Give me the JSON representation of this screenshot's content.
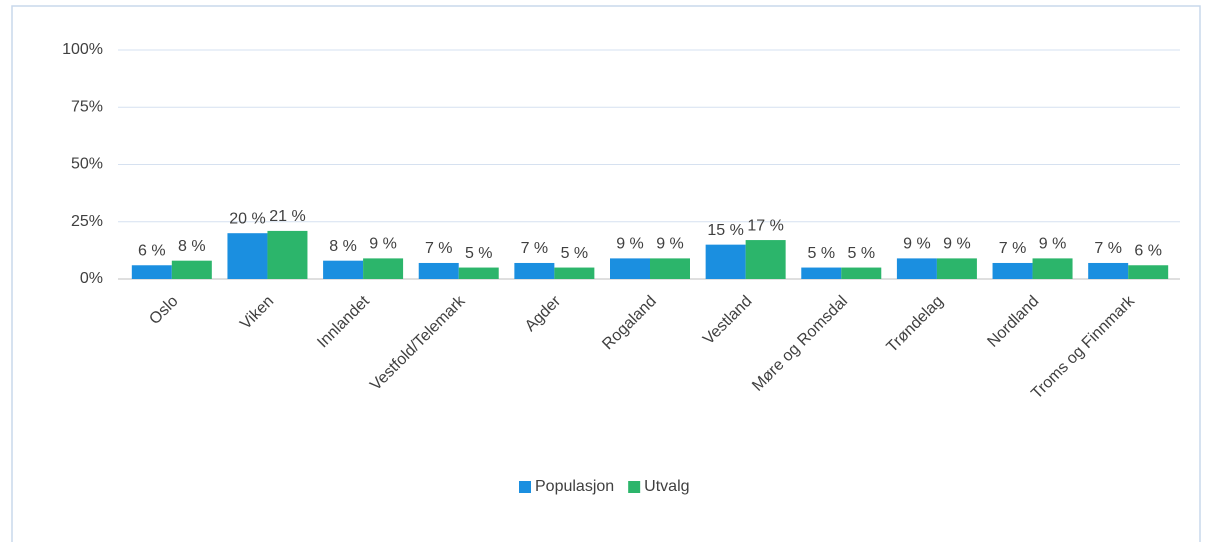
{
  "chart_data": {
    "type": "bar",
    "categories": [
      "Oslo",
      "Viken",
      "Innlandet",
      "Vestfold/Telemark",
      "Agder",
      "Rogaland",
      "Vestland",
      "Møre og Romsdal",
      "Trøndelag",
      "Nordland",
      "Troms og Finnmark"
    ],
    "series": [
      {
        "name": "Populasjon",
        "color": "#1b8fe0",
        "values": [
          6,
          20,
          8,
          7,
          7,
          9,
          15,
          5,
          9,
          7,
          7
        ],
        "value_labels": [
          "6 %",
          "20 %",
          "8 %",
          "7 %",
          "7 %",
          "9 %",
          "15 %",
          "5 %",
          "9 %",
          "7 %",
          "7 %"
        ]
      },
      {
        "name": "Utvalg",
        "color": "#2cb56b",
        "values": [
          8,
          21,
          9,
          5,
          5,
          9,
          17,
          5,
          9,
          9,
          6
        ],
        "value_labels": [
          "8 %",
          "21 %",
          "9 %",
          "5 %",
          "5 %",
          "9 %",
          "17 %",
          "5 %",
          "9 %",
          "9 %",
          "6 %"
        ]
      }
    ],
    "ylim": [
      0,
      100
    ],
    "yticks": [
      {
        "value": 0,
        "label": "0%"
      },
      {
        "value": 25,
        "label": "25%"
      },
      {
        "value": 50,
        "label": "50%"
      },
      {
        "value": 75,
        "label": "75%"
      },
      {
        "value": 100,
        "label": "100%"
      }
    ],
    "grid": true,
    "legend": "bottom"
  }
}
